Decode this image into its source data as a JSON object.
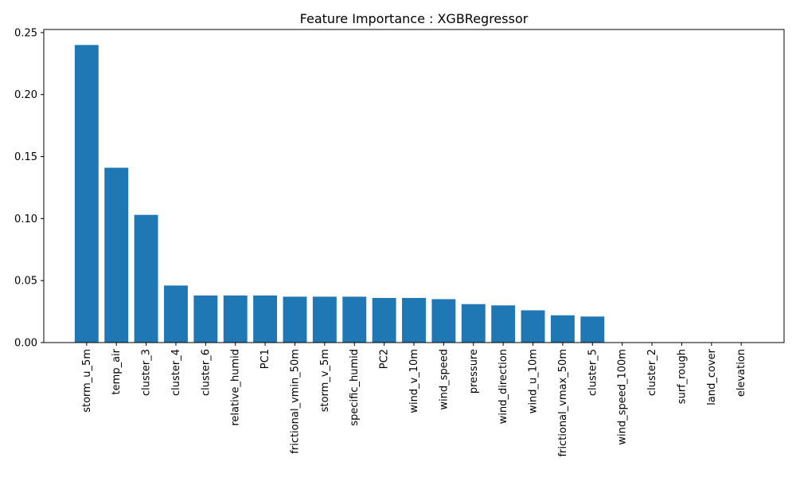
{
  "chart_data": {
    "type": "bar",
    "title": "Feature Importance : XGBRegressor",
    "xlabel": "",
    "ylabel": "",
    "categories": [
      "storm_u_5m",
      "temp_air",
      "cluster_3",
      "cluster_4",
      "cluster_6",
      "relative_humid",
      "PC1",
      "frictional_vmin_50m",
      "storm_v_5m",
      "specific_humid",
      "PC2",
      "wind_v_10m",
      "wind_speed",
      "pressure",
      "wind_direction",
      "wind_u_10m",
      "frictional_vmax_50m",
      "cluster_5",
      "wind_speed_100m",
      "cluster_2",
      "surf_rough",
      "land_cover",
      "elevation"
    ],
    "values": [
      0.24,
      0.141,
      0.103,
      0.046,
      0.038,
      0.038,
      0.038,
      0.037,
      0.037,
      0.037,
      0.036,
      0.036,
      0.035,
      0.031,
      0.03,
      0.026,
      0.022,
      0.021,
      0.0,
      0.0,
      0.0,
      0.0,
      0.0
    ],
    "yticks": [
      "0.00",
      "0.05",
      "0.10",
      "0.15",
      "0.20",
      "0.25"
    ],
    "ylim": [
      0,
      0.2525
    ],
    "bar_color": "#1f77b4",
    "grid": false,
    "legend": "none"
  }
}
